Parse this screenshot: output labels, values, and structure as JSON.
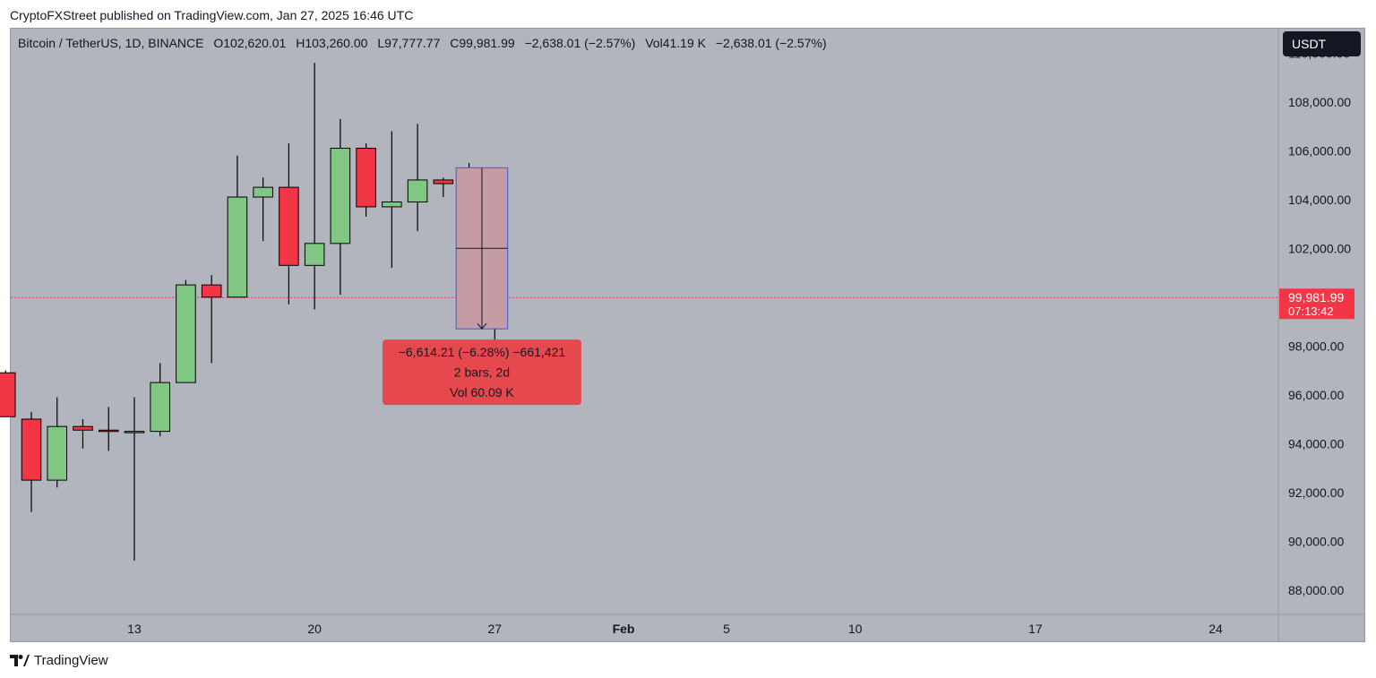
{
  "header": {
    "publisher_line": "CryptoFXStreet published on TradingView.com, Jan 27, 2025 16:46 UTC"
  },
  "legend": {
    "symbol": "Bitcoin / TetherUS, 1D, BINANCE",
    "open": "O102,620.01",
    "high": "H103,260.00",
    "low": "L97,777.77",
    "close": "C99,981.99",
    "change": "−2,638.01 (−2.57%)",
    "volume": "Vol41.19 K",
    "volume_change": "−2,638.01 (−2.57%)"
  },
  "currency_button": "USDT",
  "footer": {
    "brand": "TradingView"
  },
  "colors": {
    "up": "#81c784",
    "down": "#f23645",
    "background": "#b2b5be",
    "measure_box": "#c59ba5",
    "measure_border": "#3b5bdb",
    "measure_label": "#e5484d"
  },
  "chart_data": {
    "type": "candlestick",
    "y_axis": {
      "ticks": [
        "88,000.00",
        "90,000.00",
        "92,000.00",
        "94,000.00",
        "96,000.00",
        "98,000.00",
        "102,000.00",
        "104,000.00",
        "106,000.00",
        "108,000.00",
        "110,000.00"
      ],
      "range": [
        87000,
        111000
      ]
    },
    "x_axis": {
      "ticks": [
        {
          "label": "13",
          "day": 13
        },
        {
          "label": "20",
          "day": 20
        },
        {
          "label": "27",
          "day": 27
        },
        {
          "label": "Feb",
          "day": 32
        },
        {
          "label": "5",
          "day": 36
        },
        {
          "label": "10",
          "day": 41
        },
        {
          "label": "17",
          "day": 48
        },
        {
          "label": "24",
          "day": 55
        }
      ],
      "range": [
        8.2,
        57.4
      ]
    },
    "last_price": {
      "value": 99981.99,
      "label": "99,981.99",
      "countdown": "07:13:42"
    },
    "candles": [
      {
        "day": 8,
        "o": 96900,
        "h": 97000,
        "l": 95100,
        "c": 95100
      },
      {
        "day": 9,
        "o": 95000,
        "h": 95300,
        "l": 91200,
        "c": 92500
      },
      {
        "day": 10,
        "o": 92500,
        "h": 95900,
        "l": 92200,
        "c": 94700
      },
      {
        "day": 11,
        "o": 94700,
        "h": 95000,
        "l": 93800,
        "c": 94550
      },
      {
        "day": 12,
        "o": 94550,
        "h": 95500,
        "l": 93700,
        "c": 94500
      },
      {
        "day": 13,
        "o": 94500,
        "h": 95900,
        "l": 89200,
        "c": 94500
      },
      {
        "day": 14,
        "o": 94500,
        "h": 97300,
        "l": 94300,
        "c": 96500
      },
      {
        "day": 15,
        "o": 96500,
        "h": 100700,
        "l": 96500,
        "c": 100500
      },
      {
        "day": 16,
        "o": 100500,
        "h": 100900,
        "l": 97300,
        "c": 100000
      },
      {
        "day": 17,
        "o": 100000,
        "h": 105800,
        "l": 100000,
        "c": 104100
      },
      {
        "day": 18,
        "o": 104100,
        "h": 104900,
        "l": 102300,
        "c": 104500
      },
      {
        "day": 19,
        "o": 104500,
        "h": 106300,
        "l": 99700,
        "c": 101300
      },
      {
        "day": 20,
        "o": 101300,
        "h": 109600,
        "l": 99500,
        "c": 102200
      },
      {
        "day": 21,
        "o": 102200,
        "h": 107300,
        "l": 100100,
        "c": 106100
      },
      {
        "day": 22,
        "o": 106100,
        "h": 106300,
        "l": 103300,
        "c": 103700
      },
      {
        "day": 23,
        "o": 103700,
        "h": 106800,
        "l": 101200,
        "c": 103900
      },
      {
        "day": 24,
        "o": 103900,
        "h": 107100,
        "l": 102700,
        "c": 104800
      },
      {
        "day": 25,
        "o": 104800,
        "h": 104900,
        "l": 104100,
        "c": 104650
      },
      {
        "day": 26,
        "o": 104700,
        "h": 105500,
        "l": 102400,
        "c": 102600
      },
      {
        "day": 27,
        "o": 102620.01,
        "h": 103260.0,
        "l": 97777.77,
        "c": 99981.99
      }
    ],
    "measurement": {
      "from_day": 25.5,
      "to_day": 26.5,
      "top": 105300,
      "bottom": 98700,
      "line1": "−6,614.21 (−6.28%) −661,421",
      "line2": "2 bars, 2d",
      "line3": "Vol 60.09 K"
    }
  }
}
